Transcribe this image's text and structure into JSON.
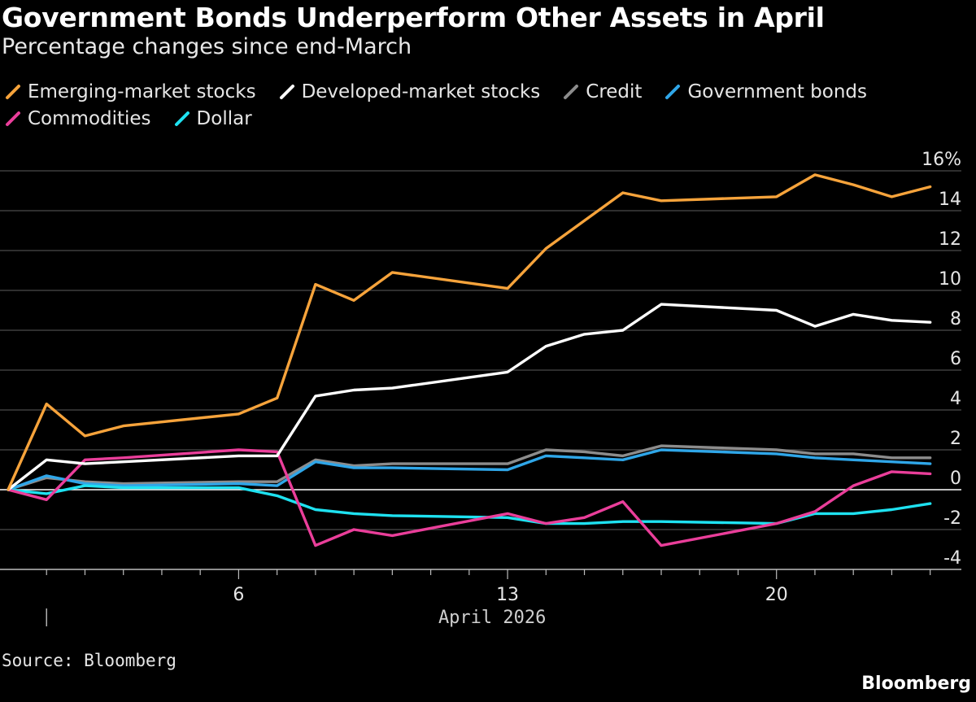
{
  "header": {
    "title": "Government Bonds Underperform Other Assets in April",
    "subtitle": "Percentage changes since end-March"
  },
  "footer": {
    "source": "Source: Bloomberg",
    "brand": "Bloomberg"
  },
  "chart_data": {
    "type": "line",
    "title": "Government Bonds Underperform Other Assets in April",
    "subtitle": "Percentage changes since end-March",
    "xlabel": "April 2026",
    "ylabel": "",
    "x_unit": "April day (0 = end-March)",
    "xlim": [
      0,
      24.6
    ],
    "ylim": [
      -4,
      16
    ],
    "y_ticks": [
      -4,
      -2,
      0,
      2,
      4,
      6,
      8,
      10,
      12,
      14,
      16
    ],
    "y_tick_labels": [
      "-4",
      "-2",
      "0",
      "2",
      "4",
      "6",
      "8",
      "10",
      "12",
      "14",
      "16%"
    ],
    "x_ticks": [
      6,
      13,
      20
    ],
    "x_tick_labels": [
      "6",
      "13",
      "20"
    ],
    "grid": true,
    "legend_position": "top-left",
    "x": [
      0,
      1,
      2,
      3,
      6,
      7,
      8,
      9,
      10,
      13,
      14,
      15,
      16,
      17,
      20,
      21,
      22,
      23,
      24
    ],
    "series": [
      {
        "name": "Emerging-market stocks",
        "color": "#f6a33b",
        "values": [
          0.0,
          4.3,
          2.7,
          3.2,
          3.8,
          4.6,
          10.3,
          9.5,
          10.9,
          10.1,
          12.1,
          13.5,
          14.9,
          14.5,
          14.7,
          15.8,
          15.3,
          14.7,
          15.2
        ]
      },
      {
        "name": "Developed-market stocks",
        "color": "#ffffff",
        "values": [
          0.0,
          1.5,
          1.3,
          1.4,
          1.7,
          1.7,
          4.7,
          5.0,
          5.1,
          5.9,
          7.2,
          7.8,
          8.0,
          9.3,
          9.0,
          8.2,
          8.8,
          8.5,
          8.4
        ]
      },
      {
        "name": "Credit",
        "color": "#8c8c8c",
        "values": [
          0.0,
          0.6,
          0.4,
          0.3,
          0.4,
          0.4,
          1.5,
          1.2,
          1.3,
          1.3,
          2.0,
          1.9,
          1.7,
          2.2,
          2.0,
          1.8,
          1.8,
          1.6,
          1.6
        ]
      },
      {
        "name": "Government bonds",
        "color": "#2fa6e8",
        "values": [
          0.0,
          0.7,
          0.3,
          0.2,
          0.3,
          0.2,
          1.4,
          1.1,
          1.1,
          1.0,
          1.7,
          1.6,
          1.5,
          2.0,
          1.8,
          1.6,
          1.5,
          1.4,
          1.3
        ]
      },
      {
        "name": "Commodities",
        "color": "#ea3e9a",
        "values": [
          0.0,
          -0.5,
          1.5,
          1.6,
          2.0,
          1.9,
          -2.8,
          -2.0,
          -2.3,
          -1.2,
          -1.7,
          -1.4,
          -0.6,
          -2.8,
          -1.7,
          -1.1,
          0.2,
          0.9,
          0.8
        ]
      },
      {
        "name": "Dollar",
        "color": "#1ee1f0",
        "values": [
          0.0,
          -0.2,
          0.2,
          0.1,
          0.1,
          -0.3,
          -1.0,
          -1.2,
          -1.3,
          -1.4,
          -1.7,
          -1.7,
          -1.6,
          -1.6,
          -1.7,
          -1.2,
          -1.2,
          -1.0,
          -0.7
        ]
      }
    ]
  }
}
